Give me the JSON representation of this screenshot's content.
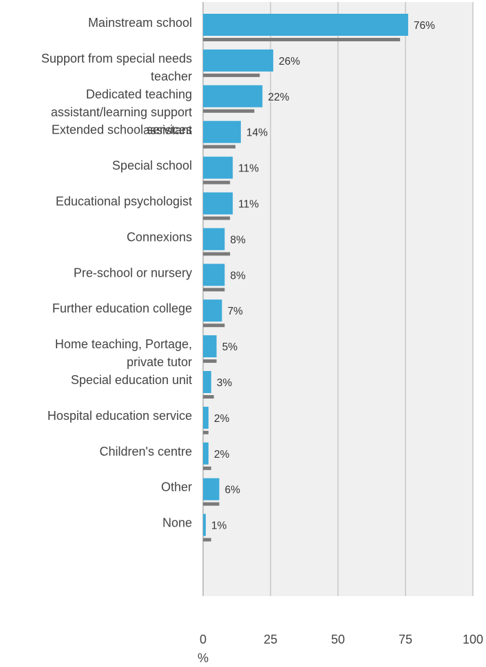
{
  "chart_data": {
    "type": "bar",
    "orientation": "horizontal",
    "categories": [
      "Mainstream school",
      "Support from special needs teacher",
      "Dedicated teaching assistant/learning support assistant",
      "Extended school services",
      "Special school",
      "Educational psychologist",
      "Connexions",
      "Pre-school or nursery",
      "Further education college",
      "Home teaching, Portage, private tutor",
      "Special education unit",
      "Hospital education service",
      "Children's centre",
      "Other",
      "None"
    ],
    "category_lines": [
      [
        "Mainstream school"
      ],
      [
        "Support from special needs",
        "teacher"
      ],
      [
        "Dedicated teaching",
        "assistant/learning support",
        "assistant"
      ],
      [
        "Extended school services"
      ],
      [
        "Special school"
      ],
      [
        "Educational psychologist"
      ],
      [
        "Connexions"
      ],
      [
        "Pre-school or nursery"
      ],
      [
        "Further education college"
      ],
      [
        "Home teaching, Portage,",
        "private tutor"
      ],
      [
        "Special education unit"
      ],
      [
        "Hospital education service"
      ],
      [
        "Children's centre"
      ],
      [
        "Other"
      ],
      [
        "None"
      ]
    ],
    "series": [
      {
        "values": [
          76,
          26,
          22,
          14,
          11,
          11,
          8,
          8,
          7,
          5,
          3,
          2,
          2,
          6,
          1
        ],
        "value_labels": [
          "76%",
          "26%",
          "22%",
          "14%",
          "11%",
          "11%",
          "8%",
          "8%",
          "7%",
          "5%",
          "3%",
          "2%",
          "2%",
          "6%",
          "1%"
        ],
        "color": "#3daad8"
      },
      {
        "values": [
          73,
          21,
          19,
          12,
          10,
          10,
          10,
          8,
          8,
          5,
          4,
          2,
          3,
          6,
          3
        ],
        "color": "#7a7a7a"
      }
    ],
    "xlim": [
      0,
      100
    ],
    "xticks": [
      0,
      25,
      50,
      75,
      100
    ],
    "xlabel": "%",
    "grid": true,
    "plot_background": "#f0f0f0",
    "gridline_color": "#c8c8c8"
  }
}
